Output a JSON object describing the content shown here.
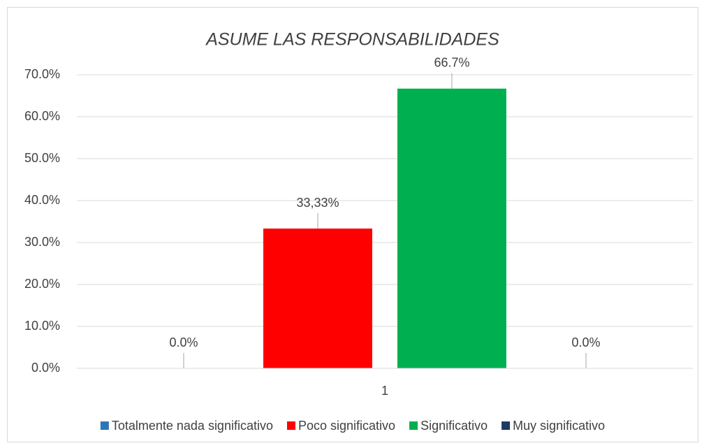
{
  "chart_data": {
    "type": "bar",
    "title": "ASUME LAS RESPONSABILIDADES",
    "categories": [
      "1"
    ],
    "series": [
      {
        "name": "Totalmente nada significativo",
        "color": "#2e75b6",
        "values": [
          0
        ],
        "value_labels": [
          "0.0%"
        ]
      },
      {
        "name": "Poco significativo",
        "color": "#ff0000",
        "values": [
          33.33
        ],
        "value_labels": [
          "33,33%"
        ]
      },
      {
        "name": "Significativo",
        "color": "#00b050",
        "values": [
          66.7
        ],
        "value_labels": [
          "66.7%"
        ]
      },
      {
        "name": "Muy significativo",
        "color": "#1f3864",
        "values": [
          0
        ],
        "value_labels": [
          "0.0%"
        ]
      }
    ],
    "ylim": [
      0,
      70
    ],
    "yticks": [
      {
        "value": 0,
        "label": "0.0%"
      },
      {
        "value": 10,
        "label": "10.0%"
      },
      {
        "value": 20,
        "label": "20.0%"
      },
      {
        "value": 30,
        "label": "30.0%"
      },
      {
        "value": 40,
        "label": "40.0%"
      },
      {
        "value": 50,
        "label": "50.0%"
      },
      {
        "value": 60,
        "label": "60.0%"
      },
      {
        "value": 70,
        "label": "70.0%"
      }
    ],
    "grid": true,
    "legend": "bottom"
  }
}
